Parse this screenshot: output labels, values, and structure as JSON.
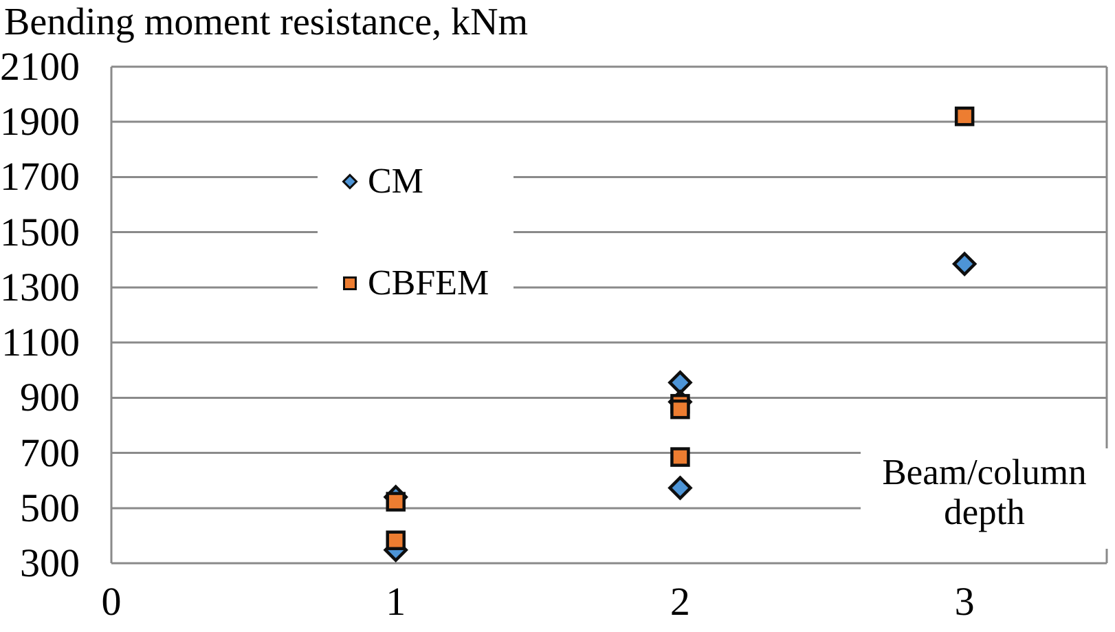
{
  "colors": {
    "background": "#FFFFFF",
    "grid": "#8A8A8A",
    "text": "#000000",
    "marker_stroke": "#0E0E0E",
    "cm_fill": "#4D94D6",
    "cbfem_fill": "#ED7D31"
  },
  "chart_data": {
    "type": "scatter",
    "title": "Bending moment resistance, kNm",
    "xlabel": "Beam/column depth",
    "xlabel_lines": [
      "Beam/column",
      "depth"
    ],
    "ylabel": "Bending moment resistance, kNm",
    "xlim": [
      0,
      3.5
    ],
    "ylim": [
      300,
      2100
    ],
    "x_ticks": [
      0,
      1,
      2,
      3
    ],
    "y_ticks": [
      2100,
      1900,
      1700,
      1500,
      1300,
      1100,
      900,
      700,
      500,
      300
    ],
    "grid": "horizontal",
    "legend_position": "inside-upper-left",
    "series": [
      {
        "name": "CM",
        "marker": "diamond",
        "fill": "#4D94D6",
        "stroke": "#0E0E0E",
        "points": [
          {
            "x": 1,
            "y": 540
          },
          {
            "x": 1,
            "y": 348
          },
          {
            "x": 2,
            "y": 955
          },
          {
            "x": 2,
            "y": 885
          },
          {
            "x": 2,
            "y": 573
          },
          {
            "x": 3,
            "y": 1385
          }
        ]
      },
      {
        "name": "CBFEM",
        "marker": "square",
        "fill": "#ED7D31",
        "stroke": "#0E0E0E",
        "points": [
          {
            "x": 1,
            "y": 523
          },
          {
            "x": 1,
            "y": 383
          },
          {
            "x": 2,
            "y": 878
          },
          {
            "x": 2,
            "y": 858
          },
          {
            "x": 2,
            "y": 685
          },
          {
            "x": 3,
            "y": 1920
          }
        ]
      }
    ]
  }
}
